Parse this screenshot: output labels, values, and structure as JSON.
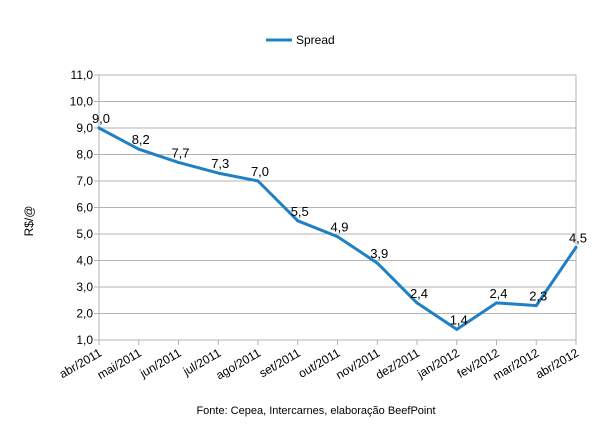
{
  "chart_data": {
    "type": "line",
    "categories": [
      "abr/2011",
      "mai/2011",
      "jun/2011",
      "jul/2011",
      "ago/2011",
      "set/2011",
      "out/2011",
      "nov/2011",
      "dez/2011",
      "jan/2012",
      "fev/2012",
      "mar/2012",
      "abr/2012"
    ],
    "series": [
      {
        "name": "Spread",
        "values": [
          9.0,
          8.2,
          7.7,
          7.3,
          7.0,
          5.5,
          4.9,
          3.9,
          2.4,
          1.4,
          2.4,
          2.3,
          4.5
        ],
        "labels": [
          "9,0",
          "8,2",
          "7,7",
          "7,3",
          "7,0",
          "5,5",
          "4,9",
          "3,9",
          "2,4",
          "1,4",
          "2,4",
          "2,3",
          "4,5"
        ],
        "color": "#1f80c4"
      }
    ],
    "ylabel": "R$/@",
    "ylim": [
      1.0,
      11.0
    ],
    "yticks": [
      1.0,
      2.0,
      3.0,
      4.0,
      5.0,
      6.0,
      7.0,
      8.0,
      9.0,
      10.0,
      11.0
    ],
    "ytick_labels": [
      "1,0",
      "2,0",
      "3,0",
      "4,0",
      "5,0",
      "6,0",
      "7,0",
      "8,0",
      "9,0",
      "10,0",
      "11,0"
    ],
    "grid": true,
    "legend": "top-center",
    "source": "Fonte: Cepea, Intercarnes, elaboração BeefPoint"
  }
}
